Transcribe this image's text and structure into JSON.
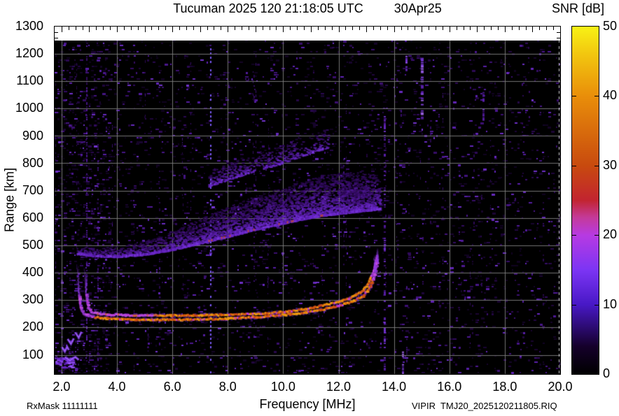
{
  "title": {
    "main": "Tucuman 2025 120 21:18:05 UTC",
    "date": "30Apr25"
  },
  "colorbar": {
    "label": "SNR [dB]",
    "ticks": [
      0,
      10,
      20,
      30,
      40,
      50
    ],
    "min": 0,
    "max": 50
  },
  "axes": {
    "x": {
      "label": "Frequency [MHz]",
      "tick_values": [
        2,
        4,
        6,
        8,
        10,
        12,
        14,
        16,
        18,
        20
      ],
      "tick_labels": [
        "2.0",
        "4.0",
        "6.0",
        "8.0",
        "10.0",
        "12.0",
        "14.0",
        "16.0",
        "18.0",
        "20.0"
      ]
    },
    "y": {
      "label": "Range [km]",
      "tick_values": [
        100,
        200,
        300,
        400,
        500,
        600,
        700,
        800,
        900,
        1000,
        1100,
        1200,
        1300
      ]
    }
  },
  "footer": {
    "left": "RxMask 11111111",
    "right": "VIPIR  TMJ20_2025120211805.RIQ"
  },
  "chart_data": {
    "type": "heatmap",
    "description": "VIPIR ionosonde ionogram: echo SNR versus sounding frequency and virtual range",
    "title": "Tucuman 2025 120 21:18:05 UTC",
    "date_label": "30Apr25",
    "xlabel": "Frequency [MHz]",
    "ylabel": "Range [km]",
    "zlabel": "SNR [dB]",
    "xlim": [
      1.75,
      20.0
    ],
    "ylim": [
      30,
      1300
    ],
    "zlim": [
      0,
      50
    ],
    "data_top_km": 1248,
    "grid": true,
    "palette": [
      [
        0,
        "#000000"
      ],
      [
        0.08,
        "#15002b"
      ],
      [
        0.2,
        "#4818c6"
      ],
      [
        0.3,
        "#7c35f4"
      ],
      [
        0.4,
        "#b73ae2"
      ],
      [
        0.45,
        "#c43a9a"
      ],
      [
        0.5,
        "#c22430"
      ],
      [
        0.6,
        "#c84a0e"
      ],
      [
        0.8,
        "#e98e0a"
      ],
      [
        0.92,
        "#f2c60f"
      ],
      [
        1,
        "#f8f215"
      ]
    ],
    "features": {
      "f_region_trace_o_mode": [
        [
          2.62,
          318
        ],
        [
          2.68,
          272
        ],
        [
          2.78,
          250
        ],
        [
          3.1,
          240
        ],
        [
          3.6,
          234
        ],
        [
          4.5,
          230
        ],
        [
          5.5,
          229
        ],
        [
          6.5,
          230
        ],
        [
          7.5,
          232
        ],
        [
          8.5,
          236
        ],
        [
          9.5,
          243
        ],
        [
          10.5,
          252
        ],
        [
          11.2,
          262
        ],
        [
          12.0,
          280
        ],
        [
          12.5,
          296
        ],
        [
          12.9,
          318
        ],
        [
          13.15,
          352
        ],
        [
          13.3,
          398
        ],
        [
          13.4,
          455
        ]
      ],
      "f_region_trace_x_mode": [
        [
          2.88,
          322
        ],
        [
          2.95,
          276
        ],
        [
          3.05,
          258
        ],
        [
          3.4,
          250
        ],
        [
          4.2,
          246
        ],
        [
          5.2,
          245
        ],
        [
          6.2,
          245
        ],
        [
          7.2,
          246
        ],
        [
          8.2,
          248
        ],
        [
          9.2,
          252
        ],
        [
          10.2,
          260
        ],
        [
          11.0,
          272
        ],
        [
          11.8,
          290
        ],
        [
          12.4,
          308
        ],
        [
          12.8,
          330
        ],
        [
          13.05,
          360
        ],
        [
          13.25,
          405
        ],
        [
          13.38,
          468
        ]
      ],
      "trace_snr_db": "25-40",
      "cusp_tails": [
        [
          [
            2.61,
            330
          ],
          [
            2.55,
            438
          ]
        ],
        [
          [
            2.87,
            332
          ],
          [
            2.8,
            428
          ]
        ],
        [
          [
            13.3,
            410
          ],
          [
            13.26,
            470
          ]
        ],
        [
          [
            13.4,
            440
          ],
          [
            13.36,
            495
          ]
        ]
      ],
      "spread_f_band": {
        "lower_edge": [
          [
            2.55,
            468
          ],
          [
            3.2,
            460
          ],
          [
            4.0,
            458
          ],
          [
            5.0,
            466
          ],
          [
            6.0,
            484
          ],
          [
            7.0,
            508
          ],
          [
            8.0,
            532
          ],
          [
            9.0,
            558
          ],
          [
            10.0,
            580
          ],
          [
            11.0,
            602
          ],
          [
            12.0,
            616
          ],
          [
            12.8,
            625
          ],
          [
            13.5,
            632
          ]
        ],
        "thickness_km": [
          28,
          34,
          40,
          52,
          70,
          92,
          112,
          124,
          134,
          144,
          152,
          150,
          120
        ],
        "snr_db": "8-18"
      },
      "upper_diffuse_band": {
        "lower_edge": [
          [
            7.3,
            715
          ],
          [
            8.0,
            740
          ],
          [
            9.0,
            772
          ],
          [
            10.0,
            802
          ],
          [
            10.8,
            830
          ],
          [
            11.6,
            858
          ]
        ],
        "thickness_km": [
          60,
          65,
          70,
          75,
          75,
          70
        ],
        "snr_db": "5-12"
      },
      "multi_echo_blob": {
        "center_f": 12.55,
        "center_km": 690,
        "rx_mhz": 0.65,
        "ry_km": 48
      },
      "e_region_patch": {
        "f": [
          1.78,
          2.42
        ],
        "range_km": [
          55,
          95
        ]
      },
      "e_region_hooks": [
        [
          [
            2.02,
            128
          ],
          [
            2.12,
            112
          ],
          [
            2.2,
            130
          ],
          [
            2.26,
            118
          ]
        ],
        [
          [
            2.22,
            158
          ],
          [
            2.34,
            140
          ],
          [
            2.44,
            160
          ]
        ],
        [
          [
            2.5,
            182
          ],
          [
            2.62,
            163
          ],
          [
            2.72,
            184
          ]
        ],
        [
          [
            2.12,
            92
          ],
          [
            2.3,
            80
          ],
          [
            2.5,
            92
          ],
          [
            2.62,
            82
          ]
        ]
      ],
      "noise_band_f": [
        2.0,
        3.7
      ],
      "rfi_columns": [
        {
          "f": 2.88,
          "km": [
            35,
            1230
          ],
          "density": 0.45,
          "w": 2,
          "v": 0.5
        },
        {
          "f": 3.3,
          "km": [
            35,
            900
          ],
          "density": 0.28,
          "w": 2,
          "v": 0.45
        },
        {
          "f": 7.35,
          "km": [
            35,
            1235
          ],
          "density": 0.6,
          "w": 2,
          "v": 0.95,
          "style": "dotted"
        },
        {
          "f": 9.0,
          "km": [
            35,
            1235
          ],
          "density": 0.16,
          "w": 1,
          "v": 0.4
        },
        {
          "f": 12.17,
          "km": [
            420,
            900
          ],
          "density": 0.3,
          "w": 2,
          "v": 0.5
        },
        {
          "f": 13.62,
          "km": [
            35,
            980
          ],
          "density": 0.5,
          "w": 3,
          "v": 0.6
        },
        {
          "f": 14.3,
          "km": [
            35,
            120
          ],
          "density": 0.8,
          "w": 3,
          "v": 0.8
        },
        {
          "f": 14.42,
          "km": [
            1140,
            1200
          ],
          "density": 0.7,
          "w": 3,
          "v": 0.75
        },
        {
          "f": 14.45,
          "km": [
            60,
            420
          ],
          "density": 0.2,
          "w": 2,
          "v": 0.4
        },
        {
          "f": 14.97,
          "km": [
            970,
            1185
          ],
          "density": 0.8,
          "w": 4,
          "v": 0.9
        },
        {
          "f": 15.3,
          "km": [
            500,
            950
          ],
          "density": 0.12,
          "w": 2,
          "v": 0.35
        },
        {
          "f": 17.2,
          "km": [
            960,
            1060
          ],
          "density": 0.5,
          "w": 3,
          "v": 0.6
        },
        {
          "f": 17.15,
          "km": [
            300,
            700
          ],
          "density": 0.18,
          "w": 2,
          "v": 0.4
        },
        {
          "f": 18.6,
          "km": [
            600,
            1100
          ],
          "density": 0.14,
          "w": 2,
          "v": 0.35
        },
        {
          "f": 4.6,
          "km": [
            35,
            600
          ],
          "density": 0.15,
          "w": 1,
          "v": 0.4
        },
        {
          "f": 5.1,
          "km": [
            35,
            400
          ],
          "density": 0.15,
          "w": 1,
          "v": 0.4
        }
      ],
      "right_edge_dashed_line_f": 19.95
    }
  }
}
